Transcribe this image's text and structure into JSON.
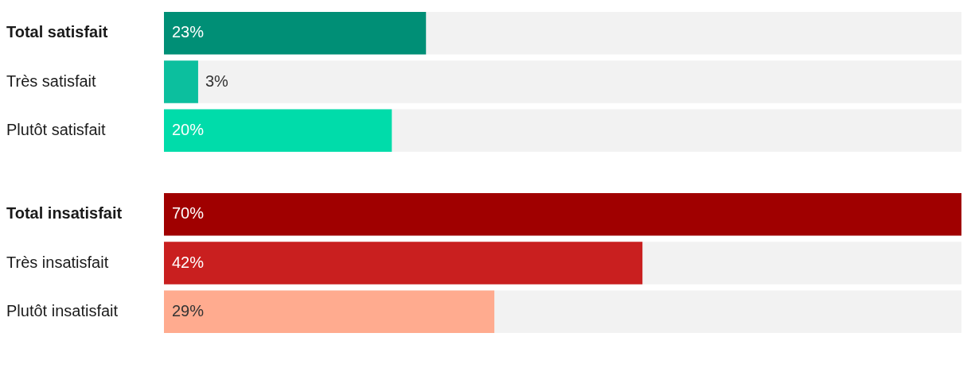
{
  "chart_data": [
    {
      "type": "bar",
      "orientation": "horizontal",
      "categories": [
        "Total satisfait",
        "Très satisfait",
        "Plutôt satisfait"
      ],
      "values": [
        23,
        3,
        20
      ],
      "colors": [
        "#008f76",
        "#0cbf9e",
        "#00dcaa"
      ],
      "value_labels": [
        "23%",
        "3%",
        "20%"
      ],
      "xlim": [
        0,
        70
      ],
      "tick_labels": "y"
    },
    {
      "type": "bar",
      "orientation": "horizontal",
      "categories": [
        "Total insatisfait",
        "Très insatisfait",
        "Plutôt insatisfait"
      ],
      "values": [
        70,
        42,
        29
      ],
      "colors": [
        "#a00000",
        "#c91f1f",
        "#ffab8f"
      ],
      "value_labels": [
        "70%",
        "42%",
        "29%"
      ],
      "xlim": [
        0,
        70
      ],
      "tick_labels": "y"
    }
  ]
}
